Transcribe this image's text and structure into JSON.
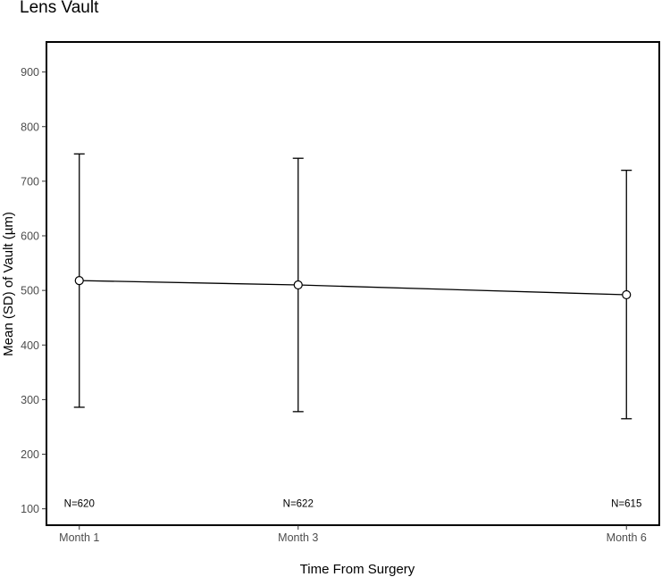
{
  "chart_data": {
    "type": "line",
    "title": "Lens Vault",
    "xlabel": "Time From Surgery",
    "ylabel": "Mean (SD) of Vault (µm)",
    "x_ticks": [
      {
        "label": "Month 1",
        "month": 1
      },
      {
        "label": "Month 3",
        "month": 3
      },
      {
        "label": "Month 6",
        "month": 6
      }
    ],
    "xlim": [
      0.7,
      6.3
    ],
    "ylim": [
      70,
      955
    ],
    "y_ticks": [
      100,
      200,
      300,
      400,
      500,
      600,
      700,
      800,
      900
    ],
    "grid": false,
    "series": [
      {
        "points": [
          {
            "month": 1,
            "mean": 518,
            "upper": 750,
            "lower": 286,
            "n_label": "N=620"
          },
          {
            "month": 3,
            "mean": 510,
            "upper": 742,
            "lower": 278,
            "n_label": "N=622"
          },
          {
            "month": 6,
            "mean": 492,
            "upper": 720,
            "lower": 265,
            "n_label": "N=615"
          }
        ]
      }
    ],
    "n_label_y": 110
  }
}
